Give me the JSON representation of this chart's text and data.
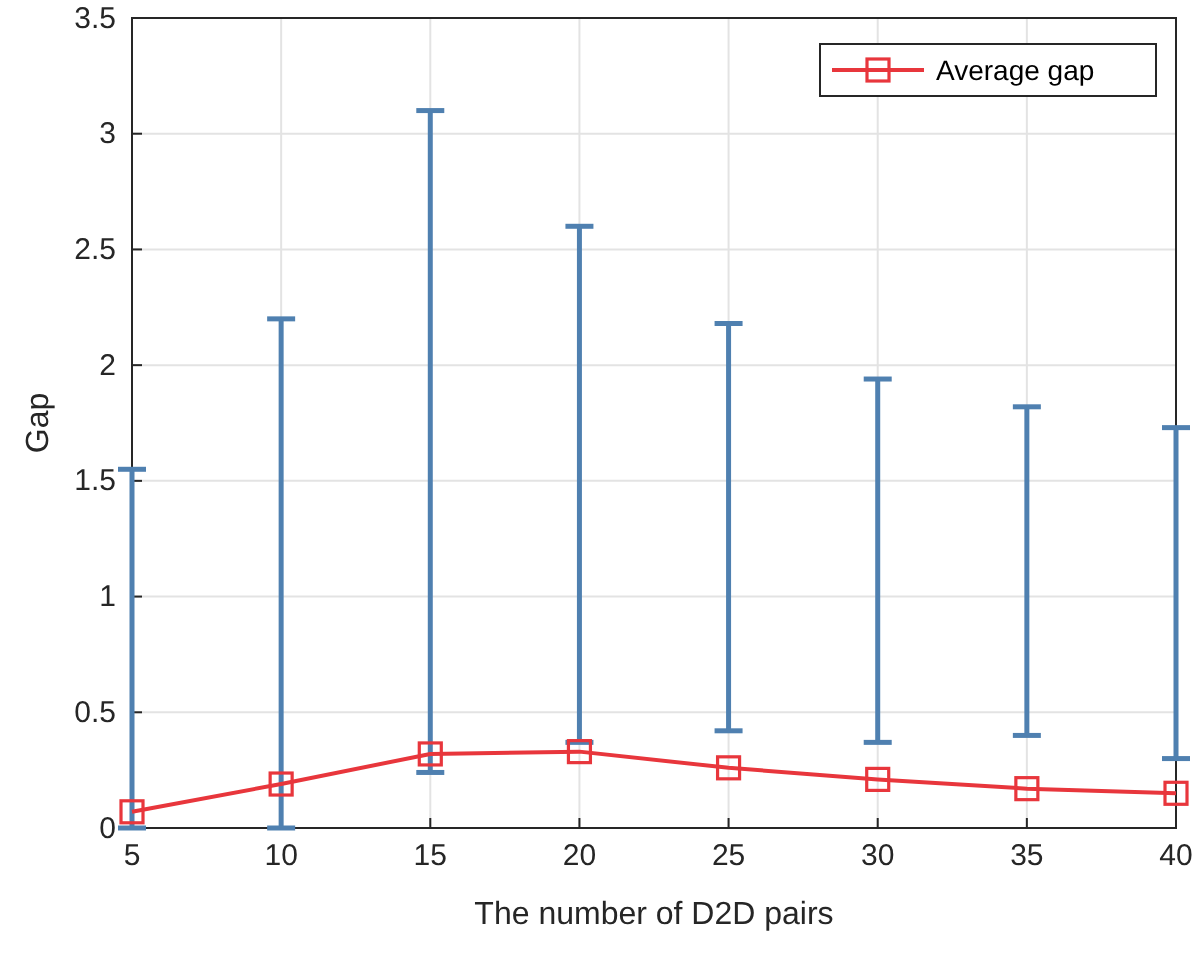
{
  "chart_data": {
    "type": "line",
    "xlabel": "The number of D2D pairs",
    "ylabel": "Gap",
    "x": [
      5,
      10,
      15,
      20,
      25,
      30,
      35,
      40
    ],
    "series": [
      {
        "name": "Average gap",
        "color": "#e8363c",
        "values": [
          0.07,
          0.19,
          0.32,
          0.33,
          0.26,
          0.21,
          0.17,
          0.15
        ],
        "errors": [
          [
            0,
            1.55
          ],
          [
            0,
            2.2
          ],
          [
            0.24,
            3.1
          ],
          [
            0.37,
            2.6
          ],
          [
            0.42,
            2.18
          ],
          [
            0.37,
            1.94
          ],
          [
            0.4,
            1.82
          ],
          [
            0.3,
            1.73
          ]
        ]
      }
    ],
    "xlim": [
      5,
      40
    ],
    "xticks": [
      5,
      10,
      15,
      20,
      25,
      30,
      35,
      40
    ],
    "ylim": [
      0,
      3.5
    ],
    "yticks": [
      0,
      0.5,
      1,
      1.5,
      2,
      2.5,
      3,
      3.5
    ],
    "grid": true,
    "legend": "top right",
    "marker": "square",
    "line_style": "solid"
  }
}
